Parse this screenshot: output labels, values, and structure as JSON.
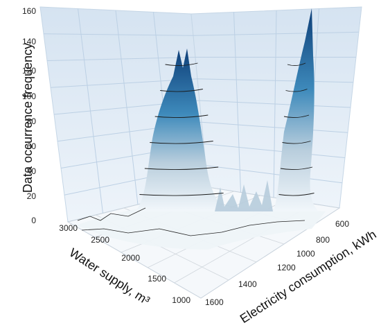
{
  "chart_data": {
    "type": "surface3d",
    "zlabel": "Data occurrence frequency",
    "ylabel": "Water supply, m³",
    "xlabel": "Electricity consumption, kWh",
    "z_ticks": [
      "0",
      "20",
      "40",
      "60",
      "80",
      "100",
      "120",
      "140",
      "160"
    ],
    "y_ticks": [
      "3000",
      "2500",
      "2000",
      "1500",
      "1000"
    ],
    "x_ticks": [
      "600",
      "800",
      "1000",
      "1200",
      "1400",
      "1600"
    ],
    "zlim": [
      0,
      160
    ],
    "contour_levels": [
      20,
      40,
      60,
      80,
      100,
      120
    ],
    "peaks": [
      {
        "electricity": 1400,
        "water": 2150,
        "frequency": 140
      },
      {
        "electricity": 700,
        "water": 1150,
        "frequency": 160
      }
    ],
    "colors": {
      "low": "#f2f7fb",
      "mid": "#8fb4cc",
      "high": "#1f6ea5",
      "top": "#0d3e78",
      "wall": "#e3ecf5"
    }
  }
}
